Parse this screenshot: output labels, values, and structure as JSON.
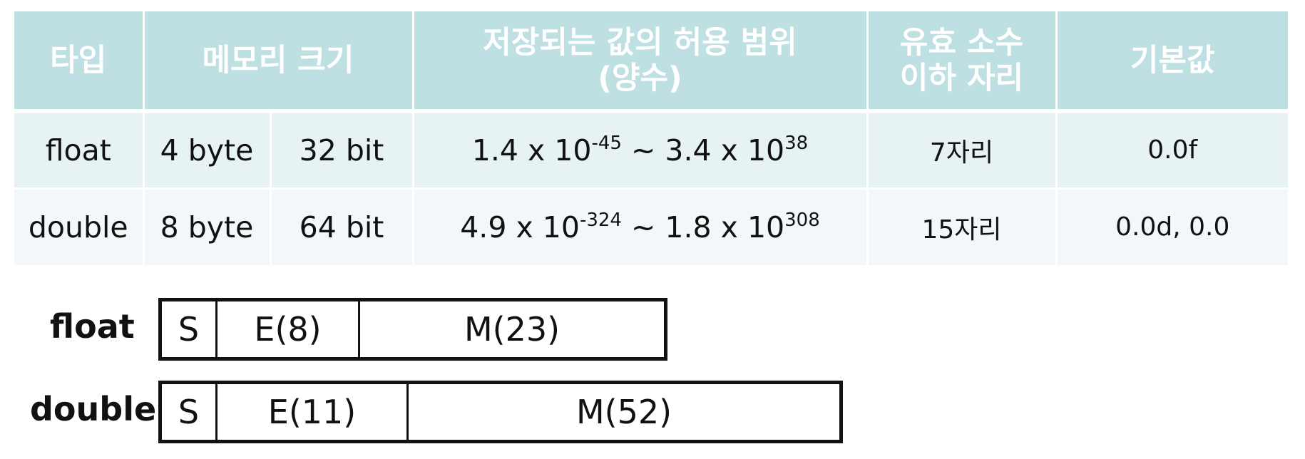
{
  "table": {
    "headers": {
      "type": "타입",
      "memory": "메모리 크기",
      "range_line1": "저장되는 값의 허용 범위",
      "range_line2": "(양수)",
      "precision_line1": "유효 소수",
      "precision_line2": "이하 자리",
      "default": "기본값"
    },
    "rows": [
      {
        "type": "float",
        "bytes": "4 byte",
        "bits": "32 bit",
        "min_mant": "1.4 x 10",
        "min_exp": "-45",
        "sep": "~",
        "max_mant": "3.4 x 10",
        "max_exp": "38",
        "precision": "7자리",
        "default": "0.0f"
      },
      {
        "type": "double",
        "bytes": "8 byte",
        "bits": "64 bit",
        "min_mant": "4.9 x 10",
        "min_exp": "-324",
        "sep": "~",
        "max_mant": "1.8 x 10",
        "max_exp": "308",
        "precision": "15자리",
        "default": "0.0d, 0.0"
      }
    ]
  },
  "layouts": {
    "float": {
      "label": "float",
      "sign": "S",
      "exponent": "E(8)",
      "mantissa": "M(23)"
    },
    "double": {
      "label": "double",
      "sign": "S",
      "exponent": "E(11)",
      "mantissa": "M(52)"
    }
  },
  "colors": {
    "header_bg": "#bfe0e3",
    "row1_bg": "#e6f2f3",
    "row2_bg": "#f2f8f9",
    "header_text": "#ffffff"
  }
}
